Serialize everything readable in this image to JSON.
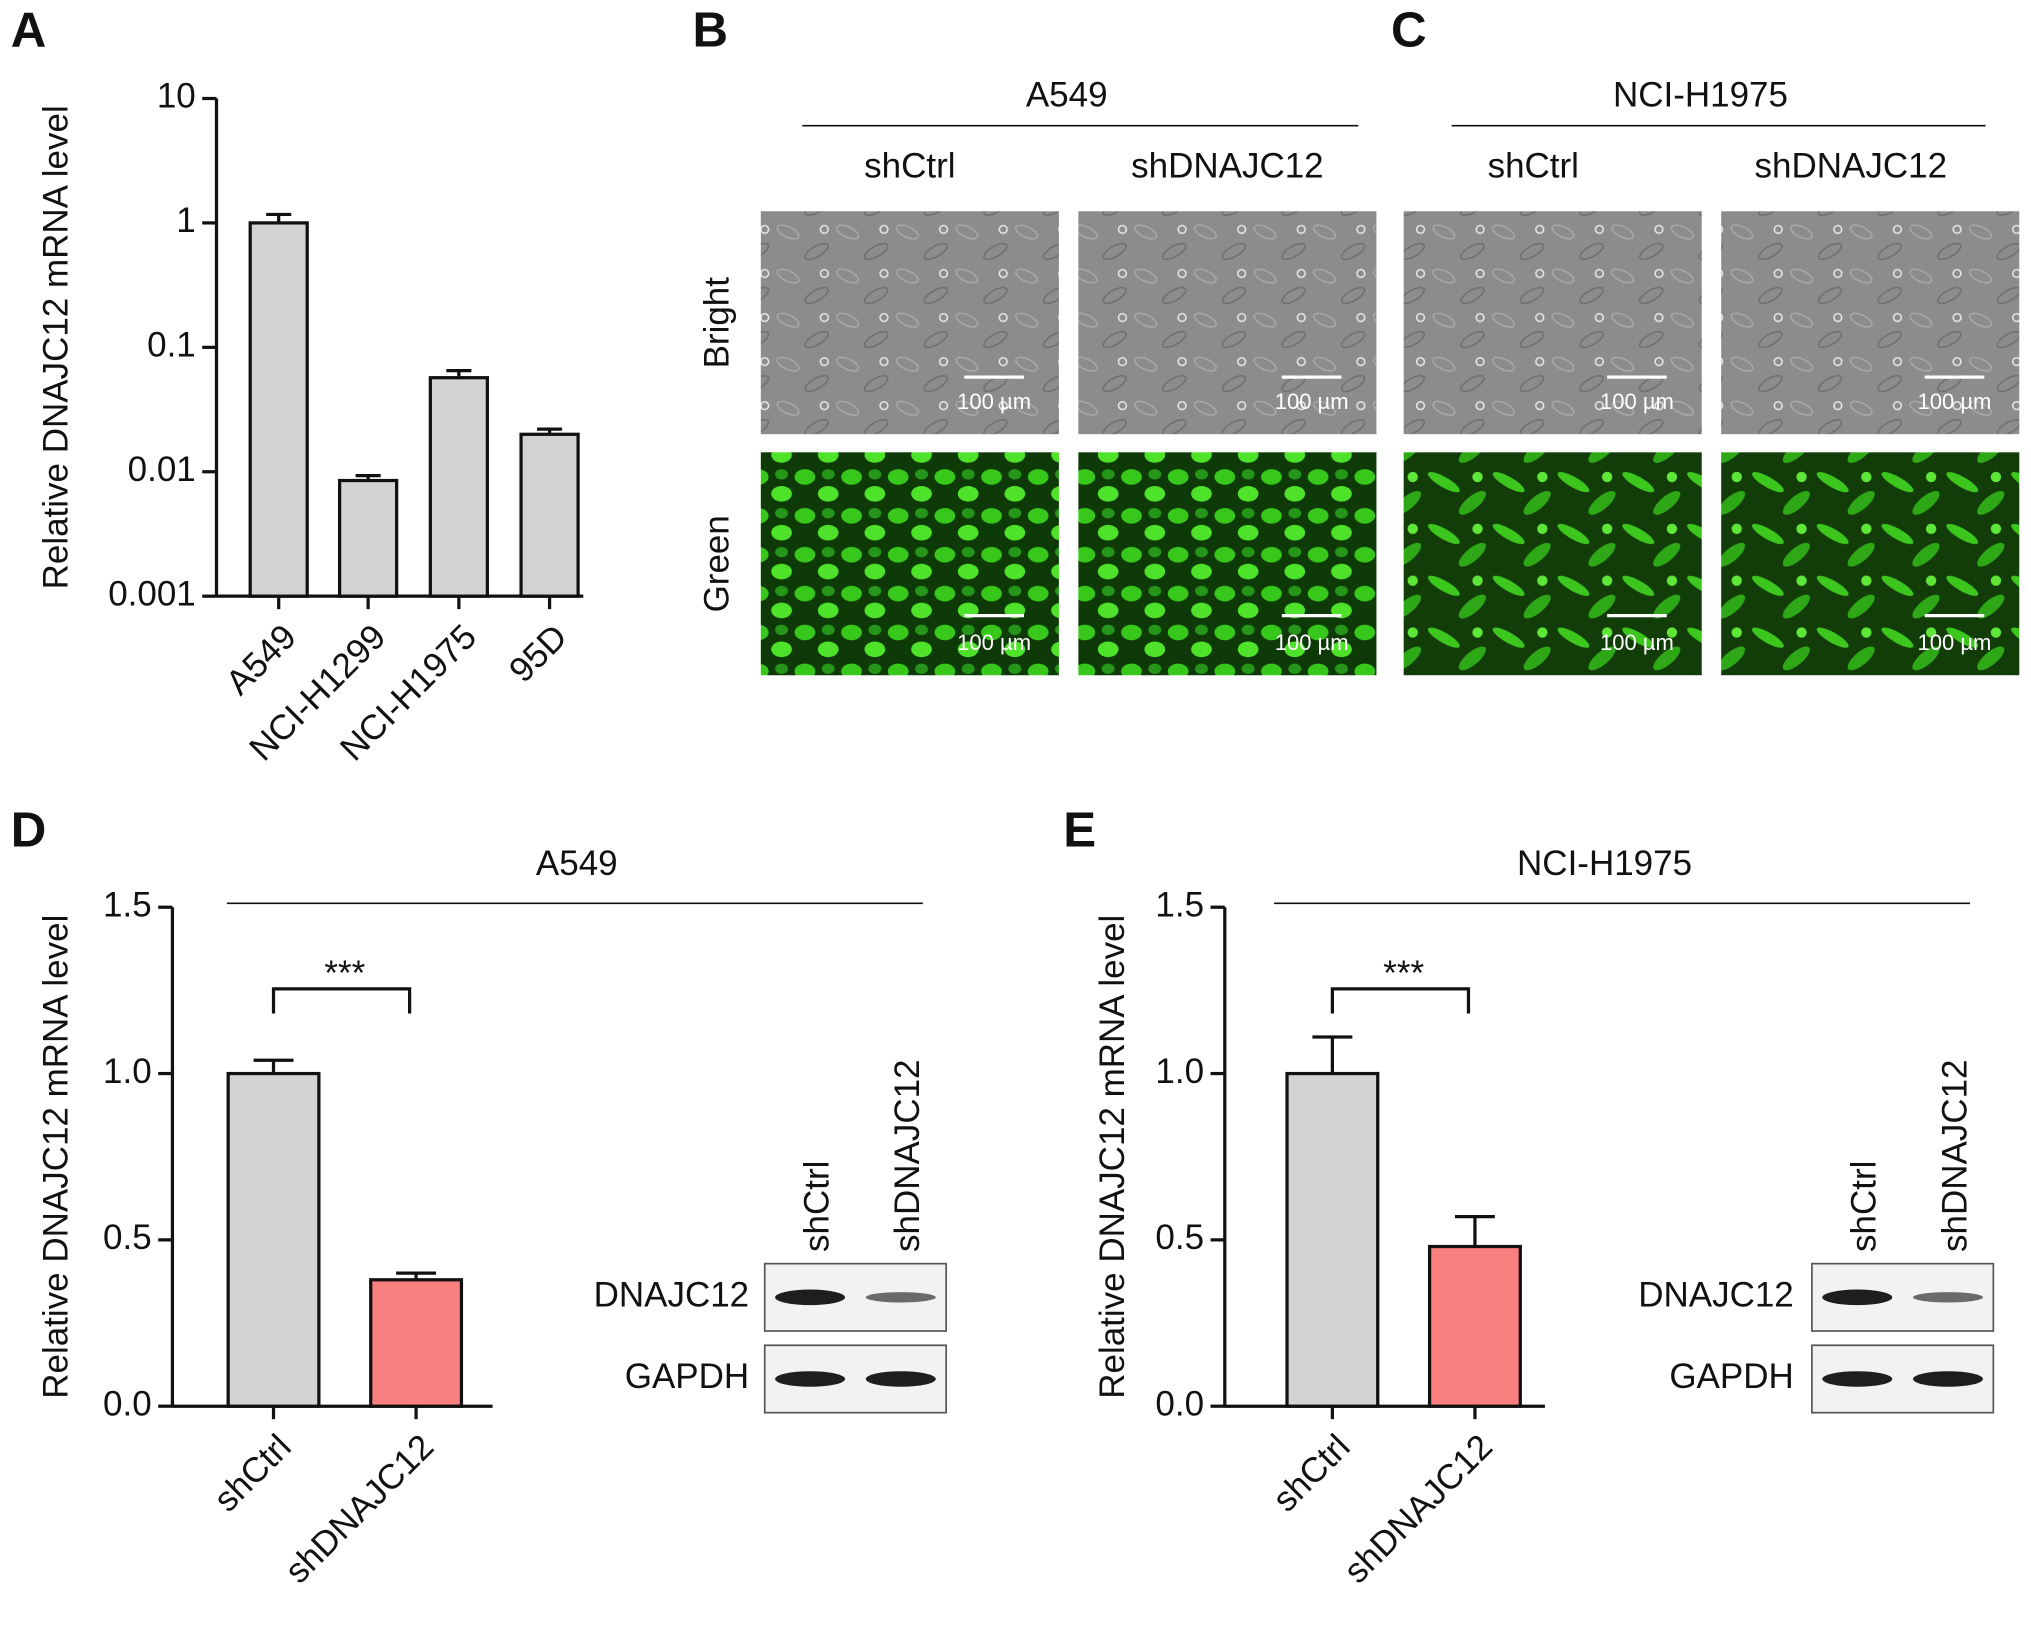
{
  "chart_data": [
    {
      "type": "bar",
      "label": "A",
      "ylabel": "Relative DNAJC12 mRNA level",
      "categories": [
        "A549",
        "NCI-H1299",
        "NCI-H1975",
        "95D"
      ],
      "values": [
        1,
        0.0085,
        0.057,
        0.02
      ],
      "errors": [
        0.17,
        0.0008,
        0.008,
        0.002
      ],
      "color": "#d3d3d3",
      "log_scale": true,
      "ylim": [
        0.001,
        10
      ],
      "yticks": [
        0.001,
        0.01,
        0.1,
        1,
        10
      ]
    },
    {
      "type": "bar",
      "label": "D",
      "title": "A549",
      "ylabel": "Relative DNAJC12 mRNA level",
      "categories": [
        "shCtrl",
        "shDNAJC12"
      ],
      "values": [
        1.0,
        0.38
      ],
      "errors": [
        0.04,
        0.02
      ],
      "colors": [
        "#d3d3d3",
        "#fa7f7f"
      ],
      "significance": "***",
      "ylim": [
        0,
        1.5
      ],
      "yticks": [
        {
          "value": 0,
          "label": "0.0"
        },
        0.5,
        {
          "value": 1,
          "label": "1.0"
        },
        1.5
      ]
    },
    {
      "type": "bar",
      "label": "E",
      "title": "NCI-H1975",
      "ylabel": "Relative DNAJC12 mRNA level",
      "categories": [
        "shCtrl",
        "shDNAJC12"
      ],
      "values": [
        1.0,
        0.48
      ],
      "errors": [
        0.11,
        0.09
      ],
      "colors": [
        "#d3d3d3",
        "#fa7f7f"
      ],
      "significance": "***",
      "ylim": [
        0,
        1.5
      ],
      "yticks": [
        {
          "value": 0,
          "label": "0.0"
        },
        0.5,
        {
          "value": 1,
          "label": "1.0"
        },
        1.5
      ]
    }
  ],
  "micrographs": [
    {
      "label": "B",
      "title": "A549",
      "columns": [
        "shCtrl",
        "shDNAJC12"
      ],
      "rows": [
        "Bright",
        "Green"
      ],
      "scale_bar": "100 µm"
    },
    {
      "label": "C",
      "title": "NCI-H1975",
      "columns": [
        "shCtrl",
        "shDNAJC12"
      ],
      "scale_bar": "100 µm"
    }
  ],
  "blots": [
    {
      "columns": [
        "shCtrl",
        "shDNAJC12"
      ],
      "rows": [
        "DNAJC12",
        "GAPDH"
      ]
    },
    {
      "columns": [
        "shCtrl",
        "shDNAJC12"
      ],
      "rows": [
        "DNAJC12",
        "GAPDH"
      ]
    }
  ]
}
